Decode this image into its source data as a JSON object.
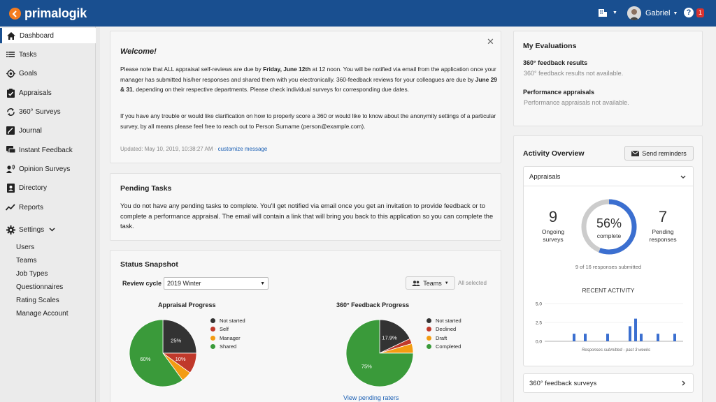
{
  "topbar": {
    "brand": "primalogik",
    "user_name": "Gabriel",
    "notification_count": "1",
    "bg_color": "#194f90",
    "logo_color": "#f47c20"
  },
  "sidebar": {
    "items": [
      {
        "label": "Dashboard",
        "icon": "home-icon"
      },
      {
        "label": "Tasks",
        "icon": "list-icon"
      },
      {
        "label": "Goals",
        "icon": "target-icon"
      },
      {
        "label": "Appraisals",
        "icon": "clipboard-check-icon"
      },
      {
        "label": "360° Surveys",
        "icon": "sync-icon"
      },
      {
        "label": "Journal",
        "icon": "journal-icon"
      },
      {
        "label": "Instant Feedback",
        "icon": "chat-icon"
      },
      {
        "label": "Opinion Surveys",
        "icon": "people-talk-icon"
      },
      {
        "label": "Directory",
        "icon": "contact-card-icon"
      },
      {
        "label": "Reports",
        "icon": "trend-icon"
      }
    ],
    "settings": {
      "label": "Settings",
      "subitems": [
        "Users",
        "Teams",
        "Job Types",
        "Questionnaires",
        "Rating Scales",
        "Manage Account"
      ]
    }
  },
  "welcome": {
    "title": "Welcome!",
    "p1_a": "Please note that ALL appraisal self-reviews are due by ",
    "p1_b": "Friday, June 12th",
    "p1_c": " at 12 noon. You will be notified via email from the application once your manager has submitted his/her responses and shared them with you electronically. 360-feedback reviews for your colleagues are due by ",
    "p1_d": "June 29 & 31",
    "p1_e": ", depending on their respective departments. Please check individual surveys for corresponding due dates.",
    "p2": "If you have any trouble or would like clarification on how to properly score a 360 or would like to know about the anonymity settings of a particular survey, by all means please feel free to reach out to Person Surname (person@example.com).",
    "updated": "Updated: May 10, 2019, 10:38:27 AM ·",
    "customize_link": "customize message"
  },
  "pending": {
    "title": "Pending Tasks",
    "text": "You do not have any pending tasks to complete. You'll get notified via email once you get an invitation to provide feedback or to complete a performance appraisal. The email will contain a link that will bring you back to this application so you can complete the task."
  },
  "snapshot": {
    "title": "Status Snapshot",
    "review_cycle_label": "Review cycle",
    "review_cycle_value": "2019 Winter",
    "teams_label": "Teams",
    "teams_value": "All selected",
    "view_pending_link": "View pending raters"
  },
  "evaluations": {
    "title": "My Evaluations",
    "feedback_title": "360° feedback results",
    "feedback_text": "360° feedback results not available.",
    "perf_title": "Performance appraisals",
    "perf_text": "Performance appraisals not available."
  },
  "activity": {
    "title": "Activity Overview",
    "send_reminders": "Send reminders",
    "section_label": "Appraisals",
    "ongoing_count": "9",
    "ongoing_label_1": "Ongoing",
    "ongoing_label_2": "surveys",
    "percent": "56%",
    "complete_label": "complete",
    "pending_count": "7",
    "pending_label_1": "Pending",
    "pending_label_2": "responses",
    "responses_submitted": "9 of 16 responses submitted",
    "recent_title": "RECENT ACTIVITY",
    "feedback_surveys_label": "360° feedback surveys"
  },
  "chart_data": [
    {
      "type": "pie",
      "title": "Appraisal Progress",
      "categories": [
        "Not started",
        "Self",
        "Manager",
        "Shared"
      ],
      "values": [
        25,
        10,
        5,
        60
      ],
      "labels": [
        "25%",
        "10%",
        "",
        "60%"
      ],
      "colors": [
        "#333333",
        "#c0392b",
        "#f39c12",
        "#3a9a3a"
      ]
    },
    {
      "type": "pie",
      "title": "360° Feedback Progress",
      "categories": [
        "Not started",
        "Declined",
        "Draft",
        "Completed"
      ],
      "values": [
        17.9,
        2.5,
        4.6,
        75
      ],
      "labels": [
        "17.9%",
        "",
        "",
        "75%"
      ],
      "colors": [
        "#333333",
        "#c0392b",
        "#f39c12",
        "#3a9a3a"
      ]
    },
    {
      "type": "bar",
      "title": "RECENT ACTIVITY",
      "xlabel": "Responses submitted - past 3 weeks",
      "ylim": [
        0,
        5
      ],
      "yticks": [
        "5.0",
        "2.5",
        "0.0"
      ],
      "values": [
        0,
        0,
        0,
        0,
        1,
        0,
        1,
        0,
        0,
        0,
        1,
        0,
        0,
        0,
        2,
        3,
        1,
        0,
        0,
        1,
        0,
        0,
        1,
        0
      ],
      "color": "#3b6fd0"
    },
    {
      "type": "donut",
      "value": 56,
      "color": "#3b6fd0",
      "track_color": "#cccccc"
    }
  ]
}
